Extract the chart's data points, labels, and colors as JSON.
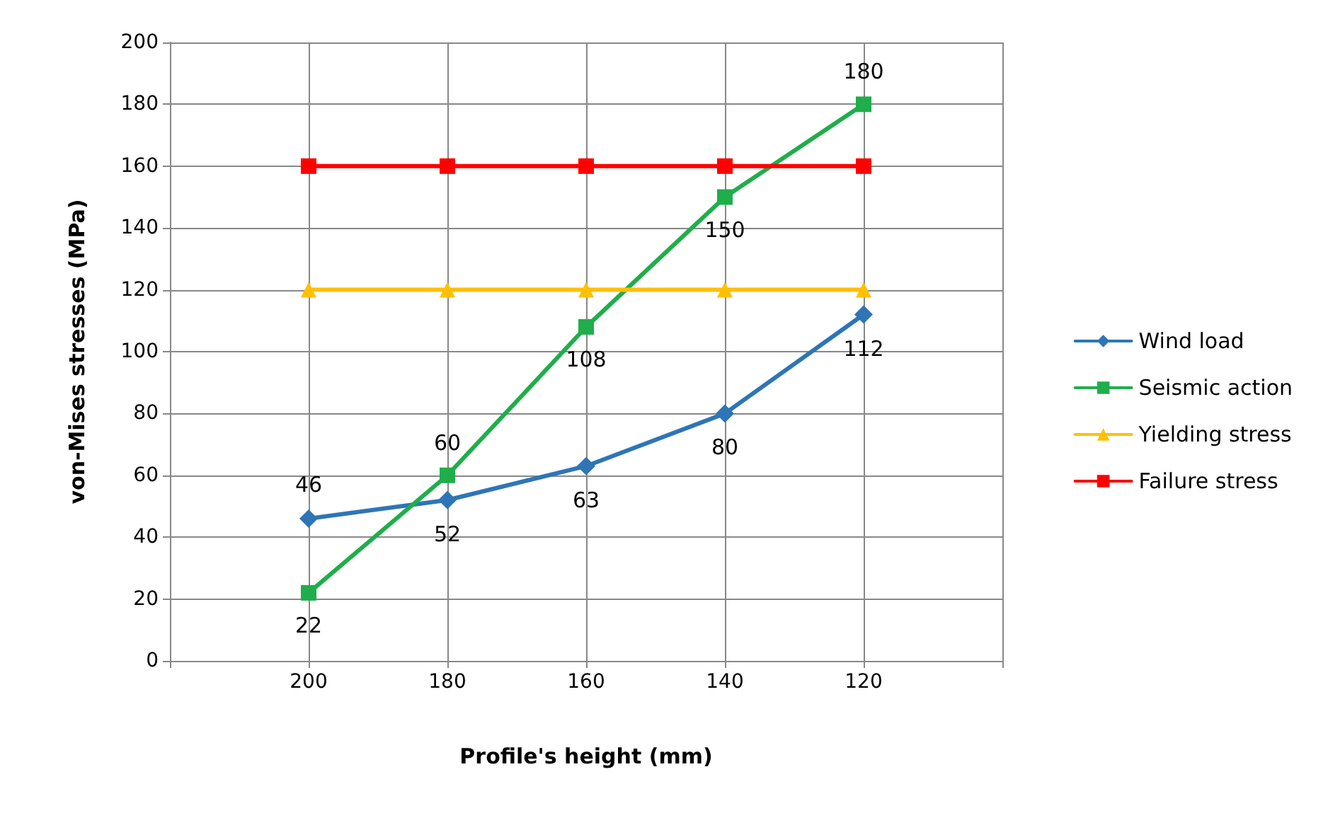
{
  "chart_data": {
    "type": "line",
    "xlabel": "Profile's height (mm)",
    "ylabel": "von-Mises stresses (MPa)",
    "x": [
      200,
      180,
      160,
      140,
      120
    ],
    "xlim": [
      220,
      100
    ],
    "xticks": [
      {
        "value": 220,
        "label": null
      },
      200,
      180,
      160,
      140,
      120,
      {
        "value": 100,
        "label": null
      }
    ],
    "ylim": [
      0,
      200
    ],
    "yticks": [
      0,
      20,
      40,
      60,
      80,
      100,
      120,
      140,
      160,
      180,
      200
    ],
    "series": [
      {
        "name": "Wind load",
        "color": "#2e75b6",
        "marker": "diamond",
        "values": [
          46,
          52,
          63,
          80,
          112
        ],
        "value_labels": [
          "46",
          "52",
          "63",
          "80",
          "112"
        ]
      },
      {
        "name": "Seismic action",
        "color": "#1fae4b",
        "marker": "square",
        "values": [
          22,
          60,
          108,
          150,
          180
        ],
        "value_labels": [
          "22",
          "60",
          "108",
          "150",
          "180"
        ]
      },
      {
        "name": "Yielding stress",
        "color": "#ffc000",
        "marker": "triangle",
        "values": [
          120,
          120,
          120,
          120,
          120
        ]
      },
      {
        "name": "Failure stress",
        "color": "#ff0000",
        "marker": "square",
        "values": [
          160,
          160,
          160,
          160,
          160
        ]
      }
    ],
    "grid": true,
    "legend": "right"
  }
}
